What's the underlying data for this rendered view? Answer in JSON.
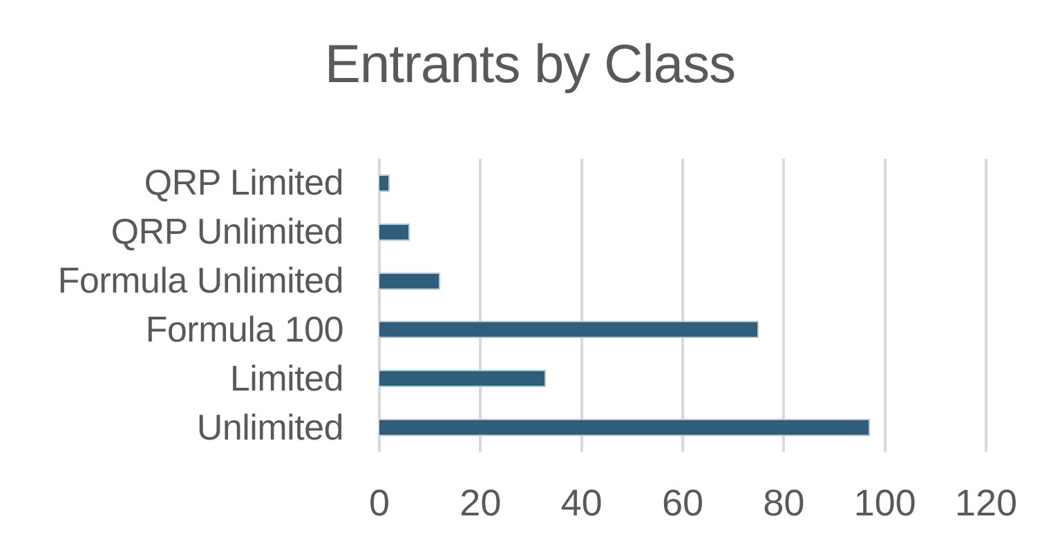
{
  "chart_data": {
    "type": "bar",
    "orientation": "horizontal",
    "title": "Entrants by Class",
    "categories": [
      "QRP Limited",
      "QRP Unlimited",
      "Formula Unlimited",
      "Formula 100",
      "Limited",
      "Unlimited"
    ],
    "values": [
      2,
      6,
      12,
      75,
      33,
      97
    ],
    "xlabel": "",
    "ylabel": "",
    "xlim": [
      0,
      120
    ],
    "x_ticks": [
      0,
      20,
      40,
      60,
      80,
      100,
      120
    ],
    "grid": true,
    "legend": false,
    "colors": {
      "bar_fill": "#2F5E7C",
      "bar_border": "#B3C9D6",
      "gridline": "#D9D9D9",
      "text": "#595959",
      "background": "#FFFFFF"
    }
  }
}
